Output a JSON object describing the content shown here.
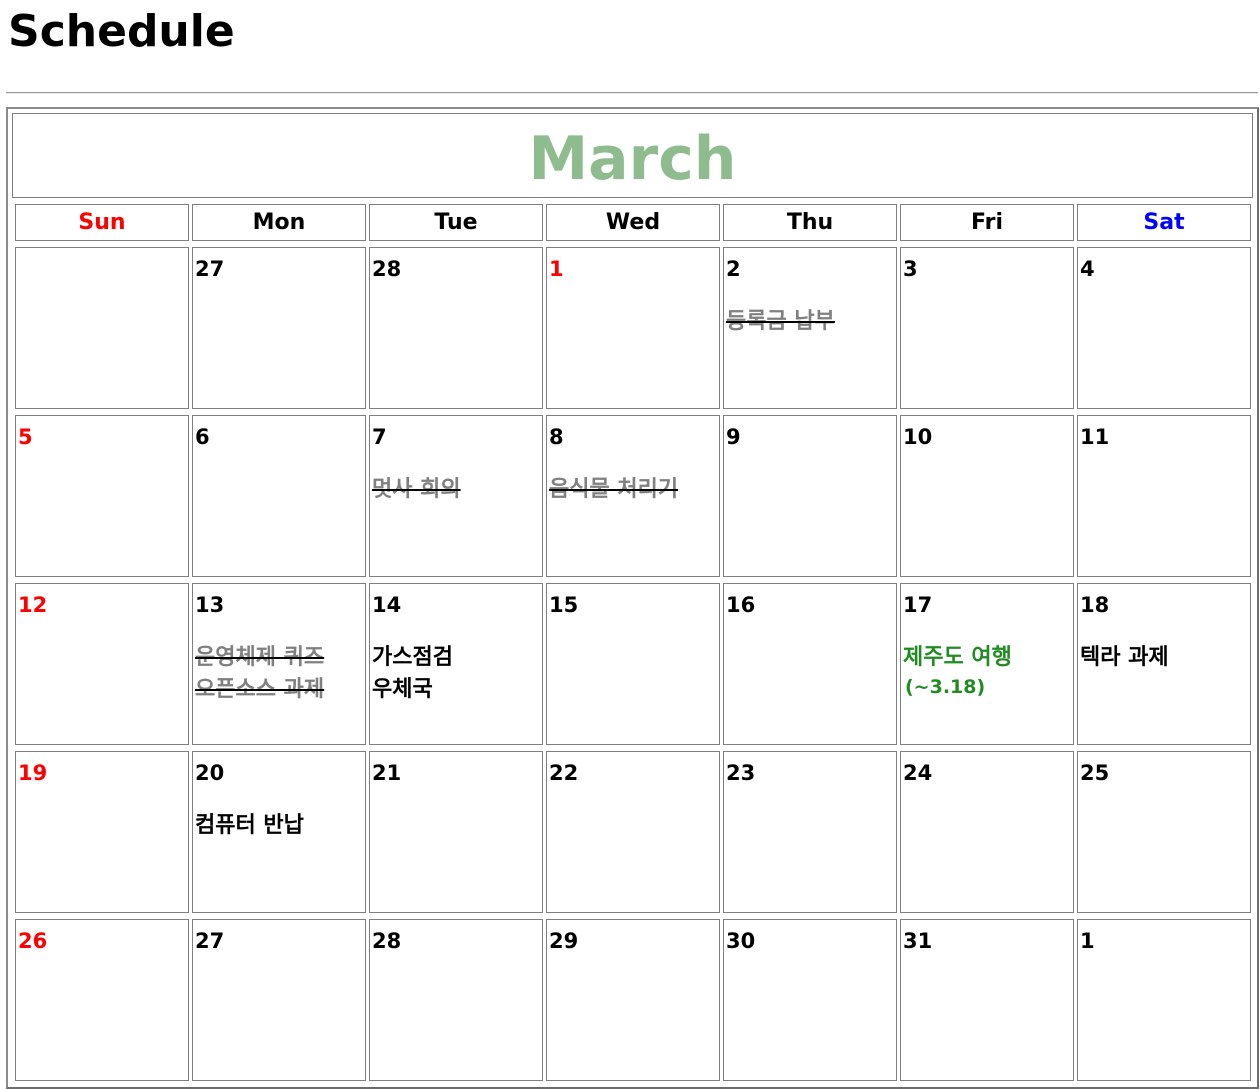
{
  "page": {
    "title": "Schedule"
  },
  "calendar": {
    "month": "March",
    "days_of_week": [
      "Sun",
      "Mon",
      "Tue",
      "Wed",
      "Thu",
      "Fri",
      "Sat"
    ],
    "colors": {
      "sunday": "#ff0000",
      "saturday": "#0000ff",
      "month_title": "#8fbc8f",
      "done_event": "#808080",
      "trip_event": "#228b22"
    },
    "weeks": [
      [
        {
          "day": "",
          "red": false,
          "events": []
        },
        {
          "day": "27",
          "red": false,
          "events": []
        },
        {
          "day": "28",
          "red": false,
          "events": []
        },
        {
          "day": "1",
          "red": true,
          "events": []
        },
        {
          "day": "2",
          "red": false,
          "events": [
            {
              "text": "등록금 납부",
              "status": "done"
            }
          ]
        },
        {
          "day": "3",
          "red": false,
          "events": []
        },
        {
          "day": "4",
          "red": false,
          "events": []
        }
      ],
      [
        {
          "day": "5",
          "red": true,
          "events": []
        },
        {
          "day": "6",
          "red": false,
          "events": []
        },
        {
          "day": "7",
          "red": false,
          "events": [
            {
              "text": "멋사 회의",
              "status": "done"
            }
          ]
        },
        {
          "day": "8",
          "red": false,
          "events": [
            {
              "text": "음식물 처리기",
              "status": "done"
            }
          ]
        },
        {
          "day": "9",
          "red": false,
          "events": []
        },
        {
          "day": "10",
          "red": false,
          "events": []
        },
        {
          "day": "11",
          "red": false,
          "events": []
        }
      ],
      [
        {
          "day": "12",
          "red": true,
          "events": []
        },
        {
          "day": "13",
          "red": false,
          "events": [
            {
              "text": "운영체제 퀴즈",
              "status": "done"
            },
            {
              "text": "오픈소스 과제",
              "status": "done"
            }
          ]
        },
        {
          "day": "14",
          "red": false,
          "events": [
            {
              "text": "가스점검",
              "status": "todo"
            },
            {
              "text": "우체국",
              "status": "todo"
            }
          ]
        },
        {
          "day": "15",
          "red": false,
          "events": []
        },
        {
          "day": "16",
          "red": false,
          "events": []
        },
        {
          "day": "17",
          "red": false,
          "events": [
            {
              "text": "제주도 여행",
              "status": "trip"
            },
            {
              "text": "(~3.18)",
              "status": "trip-sub"
            }
          ]
        },
        {
          "day": "18",
          "red": false,
          "events": [
            {
              "text": "텍라 과제",
              "status": "todo"
            }
          ]
        }
      ],
      [
        {
          "day": "19",
          "red": true,
          "events": []
        },
        {
          "day": "20",
          "red": false,
          "events": [
            {
              "text": "컴퓨터 반납",
              "status": "todo"
            }
          ]
        },
        {
          "day": "21",
          "red": false,
          "events": []
        },
        {
          "day": "22",
          "red": false,
          "events": []
        },
        {
          "day": "23",
          "red": false,
          "events": []
        },
        {
          "day": "24",
          "red": false,
          "events": []
        },
        {
          "day": "25",
          "red": false,
          "events": []
        }
      ],
      [
        {
          "day": "26",
          "red": true,
          "events": []
        },
        {
          "day": "27",
          "red": false,
          "events": []
        },
        {
          "day": "28",
          "red": false,
          "events": []
        },
        {
          "day": "29",
          "red": false,
          "events": []
        },
        {
          "day": "30",
          "red": false,
          "events": []
        },
        {
          "day": "31",
          "red": false,
          "events": []
        },
        {
          "day": "1",
          "red": false,
          "events": []
        }
      ]
    ]
  }
}
